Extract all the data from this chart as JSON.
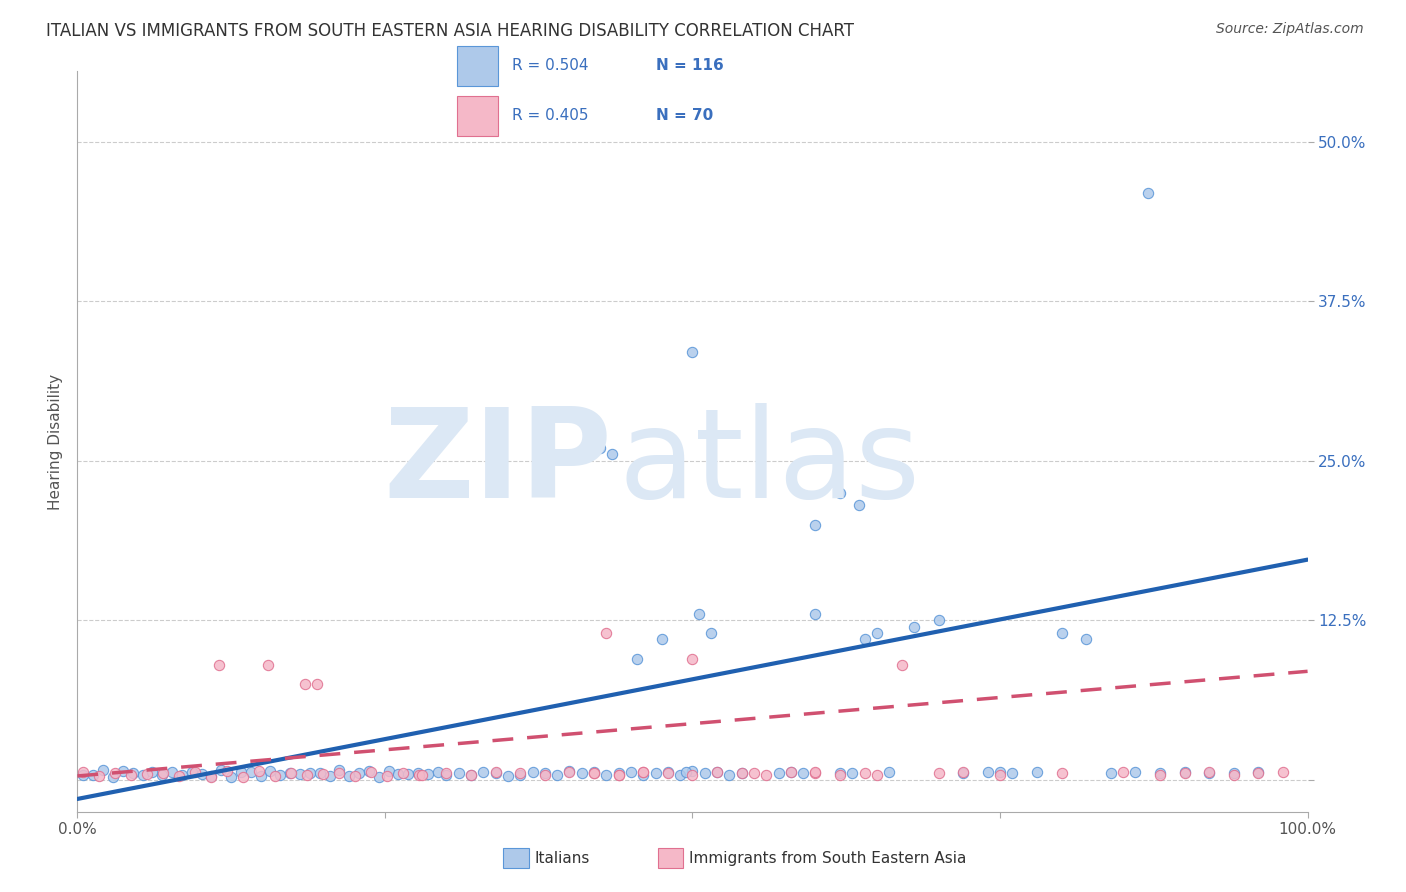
{
  "title": "ITALIAN VS IMMIGRANTS FROM SOUTH EASTERN ASIA HEARING DISABILITY CORRELATION CHART",
  "source": "Source: ZipAtlas.com",
  "ylabel_label": "Hearing Disability",
  "ytick_labels": [
    "",
    "12.5%",
    "25.0%",
    "37.5%",
    "50.0%"
  ],
  "ytick_values": [
    0,
    0.125,
    0.25,
    0.375,
    0.5
  ],
  "xtick_values": [
    0,
    0.25,
    0.5,
    0.75,
    1.0
  ],
  "xtick_labels": [
    "0.0%",
    "",
    "",
    "",
    "100.0%"
  ],
  "xlim": [
    0,
    1.0
  ],
  "ylim": [
    -0.025,
    0.555
  ],
  "legend_italians_R": "0.504",
  "legend_italians_N": "116",
  "legend_sea_R": "0.405",
  "legend_sea_N": "70",
  "legend_label_italians": "Italians",
  "legend_label_sea": "Immigrants from South Eastern Asia",
  "color_blue_fill": "#aec9ea",
  "color_blue_edge": "#5a96d8",
  "color_blue_line": "#2060b0",
  "color_pink_fill": "#f5b8c8",
  "color_pink_edge": "#e07090",
  "color_pink_line": "#d05070",
  "color_text_blue": "#3a6fbe",
  "color_grid": "#cccccc",
  "color_title": "#333333",
  "blue_slope": 0.1875,
  "blue_intercept": -0.015,
  "pink_slope": 0.082,
  "pink_intercept": 0.003,
  "watermark_zip_color": "#dce8f5",
  "watermark_atlas_color": "#dce8f5"
}
